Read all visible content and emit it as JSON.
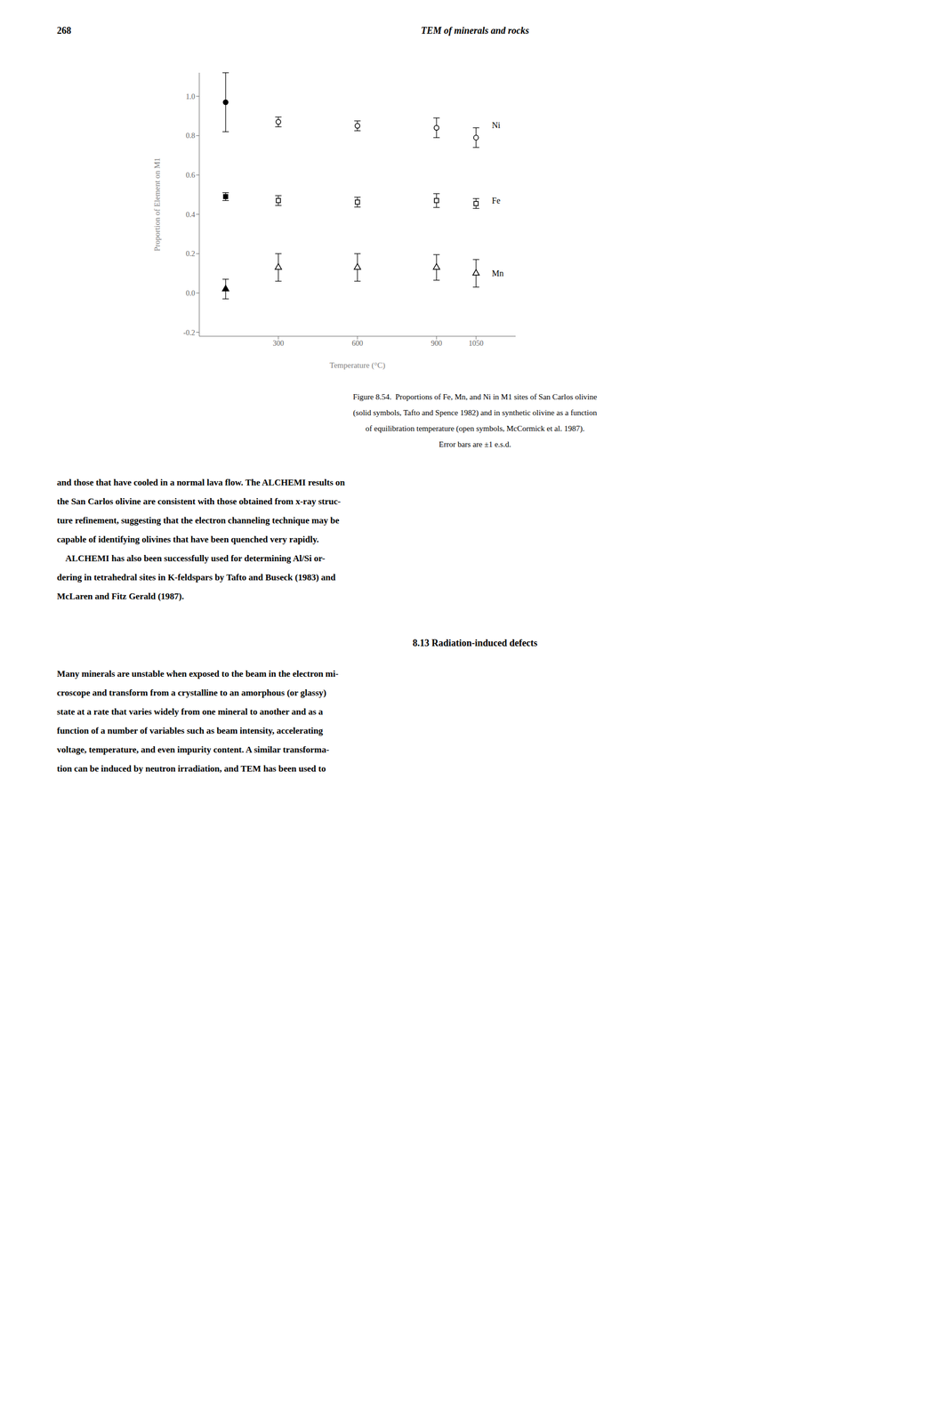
{
  "page_number": "268",
  "header_title": "TEM of minerals and rocks",
  "caption_lines": [
    "Figure 8.54.  Proportions of Fe, Mn, and Ni in M1 sites of San Carlos olivine",
    "(solid symbols, Tafto and Spence 1982) and in synthetic olivine as a function",
    "of equilibration temperature (open symbols, McCormick et al. 1987).",
    "Error bars are ±1 e.s.d."
  ],
  "body_text": [
    "and those that have cooled in a normal lava flow. The ALCHEMI results on",
    "the San Carlos olivine are consistent with those obtained from x-ray struc-",
    "ture refinement, suggesting that the electron channeling technique may be",
    "capable of identifying olivines that have been quenched very rapidly.",
    "    ALCHEMI has also been successfully used for determining Al/Si or-",
    "dering in tetrahedral sites in K-feldspars by Tafto and Buseck (1983) and",
    "McLaren and Fitz Gerald (1987)."
  ],
  "section_heading": "8.13  Radiation-induced defects",
  "section_body": [
    "Many minerals are unstable when exposed to the beam in the electron mi-",
    "croscope and transform from a crystalline to an amorphous (or glassy)",
    "state at a rate that varies widely from one mineral to another and as a",
    "function of a number of variables such as beam intensity, accelerating",
    "voltage, temperature, and even impurity content. A similar transforma-",
    "tion can be induced by neutron irradiation, and TEM has been used to"
  ],
  "chart_data": {
    "type": "scatter",
    "xlabel": "Temperature (°C)",
    "ylabel": "Proportion of Element on M1",
    "xlim": [
      0,
      1200
    ],
    "ylim": [
      -0.22,
      1.12
    ],
    "xticks": [
      300,
      600,
      900,
      1050
    ],
    "yticks": [
      -0.2,
      {
        "value": 0,
        "label": "0.0"
      },
      0.2,
      0.4,
      0.6,
      0.8,
      {
        "value": 1,
        "label": "1.0"
      }
    ],
    "grid": false,
    "series": [
      {
        "marker": "circle",
        "color": "#000000",
        "x": [
          100
        ],
        "values": [
          0.97
        ],
        "errors": [
          0.15
        ]
      },
      {
        "marker": "open_circle",
        "color": "#000000",
        "x": [
          300,
          600,
          900,
          1050
        ],
        "values": [
          0.87,
          0.85,
          0.84,
          0.79
        ],
        "errors": [
          0.025,
          0.025,
          0.05,
          0.05
        ]
      },
      {
        "marker": "square",
        "color": "#000000",
        "x": [
          100
        ],
        "values": [
          0.49
        ],
        "errors": [
          0.02
        ]
      },
      {
        "marker": "open_square",
        "color": "#000000",
        "x": [
          300,
          600,
          900,
          1050
        ],
        "values": [
          0.47,
          0.462,
          0.47,
          0.455
        ],
        "errors": [
          0.025,
          0.025,
          0.035,
          0.025
        ]
      },
      {
        "marker": "triangle",
        "color": "#000000",
        "x": [
          100
        ],
        "values": [
          0.02
        ],
        "errors": [
          0.05
        ]
      },
      {
        "marker": "open_triangle",
        "color": "#000000",
        "x": [
          300,
          600,
          900,
          1050
        ],
        "values": [
          0.13,
          0.13,
          0.13,
          0.1
        ],
        "errors": [
          0.07,
          0.07,
          0.065,
          0.07
        ]
      }
    ],
    "annotations": [
      {
        "text": "Ni",
        "x": 1100,
        "y": 0.855
      },
      {
        "text": "Fe",
        "x": 1100,
        "y": 0.47
      },
      {
        "text": "Mn",
        "x": 1100,
        "y": 0.1
      }
    ]
  }
}
